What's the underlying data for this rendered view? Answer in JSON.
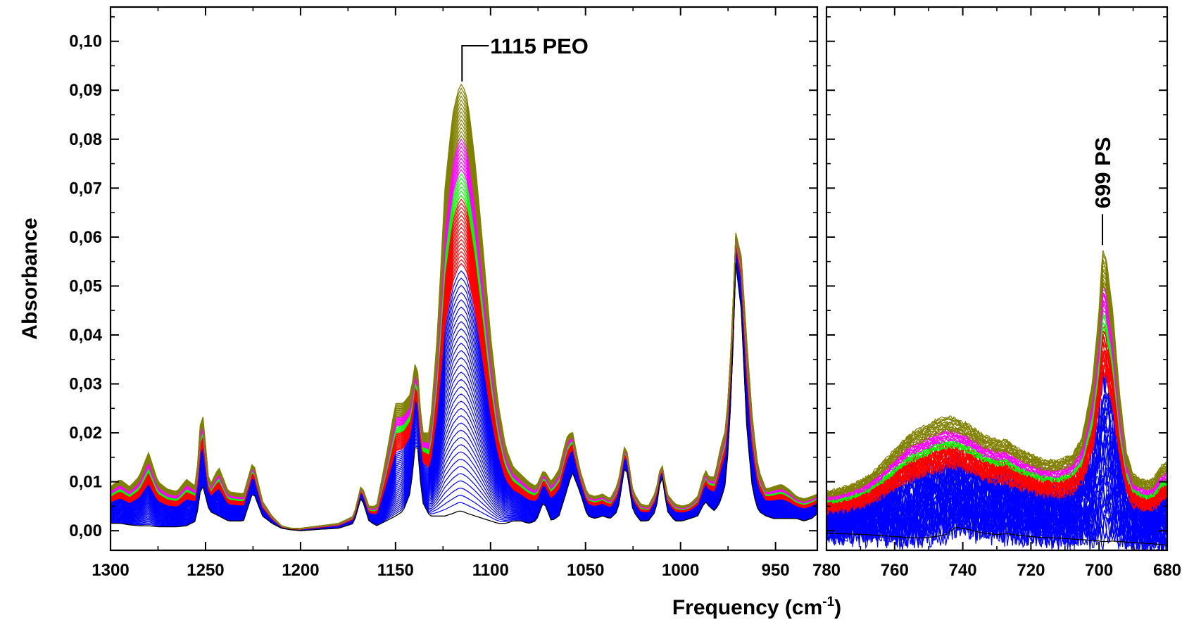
{
  "chart_data": {
    "type": "line",
    "ylabel": "Absorbance",
    "xlabel_main": "Frequency (cm",
    "xlabel_sup": "-1",
    "xlabel_close": ")",
    "y_ticks": [
      "0,00",
      "0,01",
      "0,02",
      "0,03",
      "0,04",
      "0,05",
      "0,06",
      "0,07",
      "0,08",
      "0,09",
      "0,10"
    ],
    "ylim": [
      -0.004,
      0.107
    ],
    "x_reversed": true,
    "colors": {
      "baseline": "#000000",
      "blue": "#0000ff",
      "red": "#ff0000",
      "green": "#00ff00",
      "magenta": "#ff00ff",
      "olive": "#808000"
    },
    "panels": [
      {
        "name": "left",
        "xlim": [
          1300,
          928
        ],
        "x_ticks": [
          1300,
          1250,
          1200,
          1150,
          1100,
          1050,
          1000,
          950
        ],
        "annotation": {
          "text": "1115 PEO",
          "x": 1115,
          "y": 0.0915
        },
        "envelope": {
          "x": [
            1300,
            1295,
            1290,
            1285,
            1280,
            1275,
            1270,
            1265,
            1260,
            1255,
            1252,
            1248,
            1243,
            1238,
            1230,
            1225,
            1220,
            1215,
            1210,
            1205,
            1200,
            1190,
            1180,
            1172,
            1168,
            1164,
            1160,
            1155,
            1150,
            1146,
            1142,
            1139,
            1136,
            1132,
            1128,
            1124,
            1120,
            1117,
            1115,
            1112,
            1108,
            1104,
            1100,
            1096,
            1092,
            1088,
            1084,
            1080,
            1076,
            1072,
            1068,
            1064,
            1060,
            1057,
            1053,
            1049,
            1045,
            1041,
            1037,
            1033,
            1029,
            1025,
            1021,
            1017,
            1013,
            1010,
            1007,
            1003,
            999,
            995,
            991,
            987,
            985,
            982,
            979,
            976,
            973,
            971,
            968,
            965,
            962,
            959,
            955,
            951,
            947,
            943,
            939,
            935,
            931,
            928
          ],
          "base": [
            0.0015,
            0.0015,
            0.0012,
            0.001,
            0.001,
            0.0008,
            0.0008,
            0.0008,
            0.001,
            0.002,
            0.01,
            0.004,
            0.003,
            0.002,
            0.002,
            0.008,
            0.003,
            0.0015,
            0.0005,
            0.0002,
            0,
            0.0003,
            0.0005,
            0.0015,
            0.007,
            0.002,
            0.001,
            0.002,
            0.003,
            0.004,
            0.008,
            0.02,
            0.006,
            0.003,
            0.003,
            0.003,
            0.0035,
            0.004,
            0.004,
            0.0035,
            0.003,
            0.0025,
            0.002,
            0.0015,
            0.0015,
            0.002,
            0.002,
            0.0015,
            0.002,
            0.006,
            0.002,
            0.003,
            0.008,
            0.012,
            0.008,
            0.003,
            0.0025,
            0.003,
            0.0025,
            0.004,
            0.014,
            0.004,
            0.002,
            0.002,
            0.004,
            0.012,
            0.004,
            0.002,
            0.002,
            0.0025,
            0.003,
            0.006,
            0.005,
            0.004,
            0.006,
            0.01,
            0.03,
            0.055,
            0.045,
            0.02,
            0.008,
            0.004,
            0.003,
            0.0025,
            0.0025,
            0.0025,
            0.0025,
            0.002,
            0.0025,
            0.0035
          ],
          "top": [
            0.009,
            0.0105,
            0.009,
            0.011,
            0.016,
            0.01,
            0.0085,
            0.008,
            0.0105,
            0.009,
            0.026,
            0.009,
            0.013,
            0.008,
            0.0075,
            0.0143,
            0.006,
            0.003,
            0.001,
            0.0005,
            0.0005,
            0.001,
            0.0015,
            0.003,
            0.0095,
            0.005,
            0.005,
            0.015,
            0.026,
            0.026,
            0.028,
            0.036,
            0.02,
            0.02,
            0.04,
            0.07,
            0.085,
            0.09,
            0.0915,
            0.088,
            0.075,
            0.058,
            0.04,
            0.026,
            0.017,
            0.013,
            0.0115,
            0.01,
            0.009,
            0.0125,
            0.01,
            0.0125,
            0.019,
            0.0205,
            0.0125,
            0.0075,
            0.007,
            0.0075,
            0.0065,
            0.0095,
            0.0183,
            0.008,
            0.0055,
            0.005,
            0.008,
            0.0142,
            0.0075,
            0.0055,
            0.005,
            0.0055,
            0.007,
            0.0125,
            0.011,
            0.011,
            0.017,
            0.021,
            0.04,
            0.061,
            0.056,
            0.038,
            0.022,
            0.0125,
            0.0085,
            0.009,
            0.0095,
            0.0085,
            0.007,
            0.0065,
            0.007,
            0.0075
          ]
        }
      },
      {
        "name": "right",
        "xlim": [
          780,
          680
        ],
        "x_ticks": [
          780,
          760,
          740,
          720,
          700,
          680
        ],
        "annotation": {
          "text": "699 PS",
          "x": 699,
          "y": 0.0575
        },
        "envelope": {
          "x": [
            780,
            776,
            772,
            768,
            764,
            760,
            756,
            752,
            748,
            745,
            742,
            738,
            734,
            730,
            727,
            724,
            720,
            716,
            712,
            708,
            705,
            702,
            700,
            699,
            698,
            696,
            694,
            692,
            690,
            688,
            686,
            684,
            682,
            680
          ],
          "base": [
            -0.0005,
            -0.0006,
            -0.0007,
            -0.0008,
            -0.001,
            -0.0012,
            -0.0014,
            -0.0015,
            -0.0012,
            -0.0008,
            0.0007,
            0.0002,
            -0.0005,
            -0.0008,
            -0.0006,
            -0.0009,
            -0.0012,
            -0.0014,
            -0.0015,
            -0.0017,
            -0.0018,
            -0.002,
            -0.0021,
            -0.0022,
            -0.0022,
            -0.0021,
            -0.0022,
            -0.0023,
            -0.0024,
            -0.0025,
            -0.0026,
            -0.0027,
            -0.0028,
            -0.003
          ],
          "top": [
            0.008,
            0.0085,
            0.0095,
            0.011,
            0.0135,
            0.0165,
            0.0195,
            0.021,
            0.0225,
            0.0233,
            0.0228,
            0.0215,
            0.0195,
            0.0185,
            0.0185,
            0.0168,
            0.0155,
            0.0143,
            0.0142,
            0.0155,
            0.019,
            0.03,
            0.045,
            0.0572,
            0.056,
            0.045,
            0.028,
            0.016,
            0.0115,
            0.0105,
            0.01,
            0.0105,
            0.013,
            0.014
          ]
        }
      }
    ]
  }
}
